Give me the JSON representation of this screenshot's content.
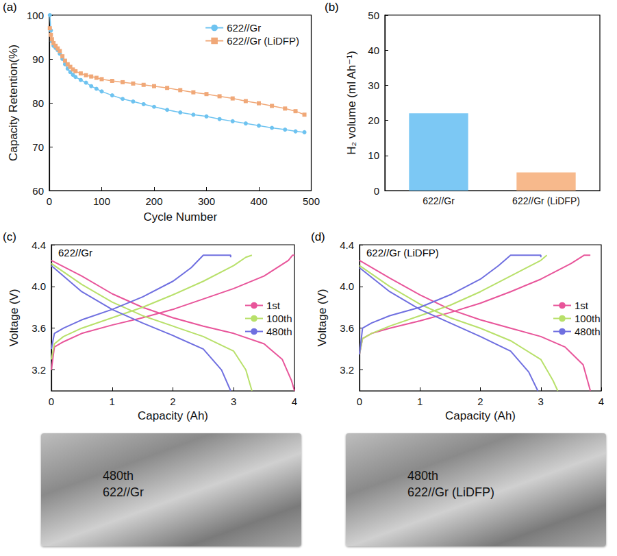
{
  "chart_data": [
    {
      "type": "line",
      "panel": "(a)",
      "x_label": "Cycle Number",
      "y_label": "Capacity Retention(%)",
      "xlim": [
        0,
        500
      ],
      "xticks": [
        0,
        100,
        200,
        300,
        400,
        500
      ],
      "ylim": [
        60,
        100
      ],
      "yticks": [
        60,
        70,
        80,
        90,
        100
      ],
      "grid": false,
      "legend": "upper right",
      "series": [
        {
          "name": "622//Gr",
          "color": "#6ec3f0",
          "marker": "circle",
          "line_style": "solid",
          "x": [
            1,
            3,
            5,
            8,
            12,
            16,
            20,
            25,
            30,
            35,
            40,
            45,
            50,
            60,
            70,
            80,
            90,
            100,
            120,
            140,
            160,
            180,
            200,
            225,
            250,
            275,
            300,
            325,
            350,
            375,
            400,
            425,
            450,
            470,
            487
          ],
          "values": [
            100,
            96.5,
            94,
            93,
            92.5,
            92,
            91.2,
            90,
            88.8,
            87.8,
            87,
            86.4,
            85.9,
            85.2,
            84.6,
            83.8,
            83.2,
            82.6,
            81.7,
            80.9,
            80.3,
            79.7,
            79.1,
            78.4,
            77.8,
            77.3,
            76.9,
            76.3,
            75.8,
            75.3,
            74.8,
            74.3,
            73.9,
            73.5,
            73.3
          ]
        },
        {
          "name": "622//Gr (LiDFP)",
          "color": "#f0a878",
          "marker": "square",
          "line_style": "solid",
          "x": [
            1,
            3,
            5,
            8,
            12,
            16,
            20,
            25,
            30,
            35,
            40,
            45,
            50,
            60,
            70,
            80,
            90,
            100,
            120,
            140,
            160,
            180,
            200,
            225,
            250,
            275,
            300,
            325,
            350,
            375,
            400,
            425,
            450,
            470,
            487
          ],
          "values": [
            97,
            95.5,
            94.5,
            93.6,
            93,
            92.4,
            91.8,
            90.6,
            89.6,
            88.8,
            88.2,
            87.6,
            87.2,
            86.7,
            86.3,
            86,
            85.7,
            85.4,
            85,
            84.7,
            84.4,
            84.1,
            83.8,
            83.4,
            82.9,
            82.4,
            82,
            81.5,
            81,
            80.4,
            79.9,
            79.3,
            78.7,
            78.1,
            77.3
          ]
        }
      ]
    },
    {
      "type": "bar",
      "panel": "(b)",
      "y_label": "H₂ volume (ml Ah⁻¹)",
      "categories": [
        "622//Gr",
        "622//Gr (LiDFP)"
      ],
      "values": [
        22,
        5.2
      ],
      "colors": [
        "#7cc8f4",
        "#f7b98c"
      ],
      "ylim": [
        0,
        50
      ],
      "yticks": [
        0,
        10,
        20,
        30,
        40,
        50
      ],
      "grid": false
    },
    {
      "type": "line",
      "panel": "(c)",
      "title": "622//Gr",
      "x_label": "Capacity (Ah)",
      "y_label": "Voltage (V)",
      "xlim": [
        0,
        4
      ],
      "xticks": [
        0,
        1,
        2,
        3,
        4
      ],
      "ylim": [
        3.0,
        4.4
      ],
      "yticks": [
        3.2,
        3.6,
        {
          "value": 4,
          "label": "4.0"
        },
        4.4
      ],
      "grid": false,
      "legend": "center right",
      "series": [
        {
          "name": "1st",
          "color": "#e8559a",
          "marker": "none",
          "line_style": "solid",
          "x": [
            0,
            0.05,
            0.2,
            0.5,
            1,
            1.5,
            2,
            2.5,
            3,
            3.5,
            3.9,
            3.97,
            4.0,
            null,
            0,
            0.5,
            1,
            1.5,
            2,
            2.5,
            3,
            3.5,
            3.8,
            3.95,
            4.0
          ],
          "values": [
            3.2,
            3.42,
            3.47,
            3.55,
            3.63,
            3.7,
            3.78,
            3.88,
            3.98,
            4.1,
            4.25,
            4.3,
            4.3,
            null,
            4.25,
            4.1,
            3.93,
            3.8,
            3.7,
            3.62,
            3.55,
            3.45,
            3.3,
            3.1,
            3.0
          ]
        },
        {
          "name": "100th",
          "color": "#b8e06a",
          "marker": "none",
          "line_style": "solid",
          "x": [
            0,
            0.05,
            0.2,
            0.5,
            1,
            1.5,
            2,
            2.5,
            3,
            3.2,
            3.3,
            null,
            0,
            0.5,
            1,
            1.5,
            2,
            2.5,
            3,
            3.2,
            3.3
          ],
          "values": [
            3.3,
            3.45,
            3.52,
            3.6,
            3.7,
            3.8,
            3.92,
            4.05,
            4.2,
            4.28,
            4.3,
            null,
            4.22,
            4.02,
            3.85,
            3.72,
            3.62,
            3.52,
            3.38,
            3.2,
            3.0
          ]
        },
        {
          "name": "480th",
          "color": "#6f6fe0",
          "marker": "none",
          "line_style": "solid",
          "x": [
            0,
            0.05,
            0.2,
            0.5,
            1,
            1.5,
            2,
            2.3,
            2.5,
            2.95,
            2.95,
            null,
            0,
            0.5,
            1,
            1.5,
            2,
            2.5,
            2.8,
            2.95
          ],
          "values": [
            3.4,
            3.55,
            3.6,
            3.68,
            3.78,
            3.9,
            4.05,
            4.18,
            4.3,
            4.3,
            4.28,
            null,
            4.2,
            3.95,
            3.78,
            3.65,
            3.53,
            3.4,
            3.2,
            3.0
          ]
        }
      ]
    },
    {
      "type": "line",
      "panel": "(d)",
      "title": "622//Gr (LiDFP)",
      "x_label": "Capacity (Ah)",
      "y_label": "Voltage (V)",
      "xlim": [
        0,
        4
      ],
      "xticks": [
        0,
        1,
        2,
        3,
        4
      ],
      "ylim": [
        3.0,
        4.4
      ],
      "yticks": [
        3.2,
        3.6,
        {
          "value": 4,
          "label": "4.0"
        },
        4.4
      ],
      "grid": false,
      "legend": "center right",
      "series": [
        {
          "name": "1st",
          "color": "#e8559a",
          "marker": "none",
          "line_style": "solid",
          "x": [
            0,
            0.05,
            0.2,
            0.5,
            1,
            1.5,
            2,
            2.5,
            3,
            3.5,
            3.72,
            3.82,
            null,
            0,
            0.5,
            1,
            1.5,
            2,
            2.5,
            3,
            3.4,
            3.7,
            3.82
          ],
          "values": [
            3.35,
            3.5,
            3.55,
            3.6,
            3.67,
            3.75,
            3.84,
            3.95,
            4.07,
            4.22,
            4.3,
            4.3,
            null,
            4.25,
            4.08,
            3.92,
            3.78,
            3.68,
            3.6,
            3.52,
            3.42,
            3.25,
            3.0
          ]
        },
        {
          "name": "100th",
          "color": "#b8e06a",
          "marker": "none",
          "line_style": "solid",
          "x": [
            0,
            0.05,
            0.2,
            0.5,
            1,
            1.5,
            2,
            2.5,
            3,
            3.1,
            null,
            0,
            0.5,
            1,
            1.5,
            2,
            2.5,
            3,
            3.2,
            3.28
          ],
          "values": [
            3.35,
            3.5,
            3.55,
            3.62,
            3.72,
            3.82,
            3.95,
            4.1,
            4.25,
            4.3,
            null,
            4.2,
            4.0,
            3.83,
            3.7,
            3.6,
            3.48,
            3.3,
            3.1,
            3.0
          ]
        },
        {
          "name": "480th",
          "color": "#6f6fe0",
          "marker": "none",
          "line_style": "solid",
          "x": [
            0,
            0.05,
            0.2,
            0.5,
            1,
            1.5,
            2,
            2.3,
            2.5,
            3,
            3,
            null,
            0,
            0.5,
            1,
            1.5,
            2,
            2.5,
            2.8,
            2.95
          ],
          "values": [
            3.35,
            3.6,
            3.65,
            3.72,
            3.8,
            3.92,
            4.07,
            4.2,
            4.3,
            4.3,
            4.28,
            null,
            4.18,
            3.95,
            3.78,
            3.65,
            3.52,
            3.38,
            3.18,
            3.0
          ]
        }
      ]
    }
  ],
  "photos": [
    {
      "lines": [
        "480th",
        "622//Gr"
      ]
    },
    {
      "lines": [
        "480th",
        "622//Gr (LiDFP)"
      ]
    }
  ]
}
